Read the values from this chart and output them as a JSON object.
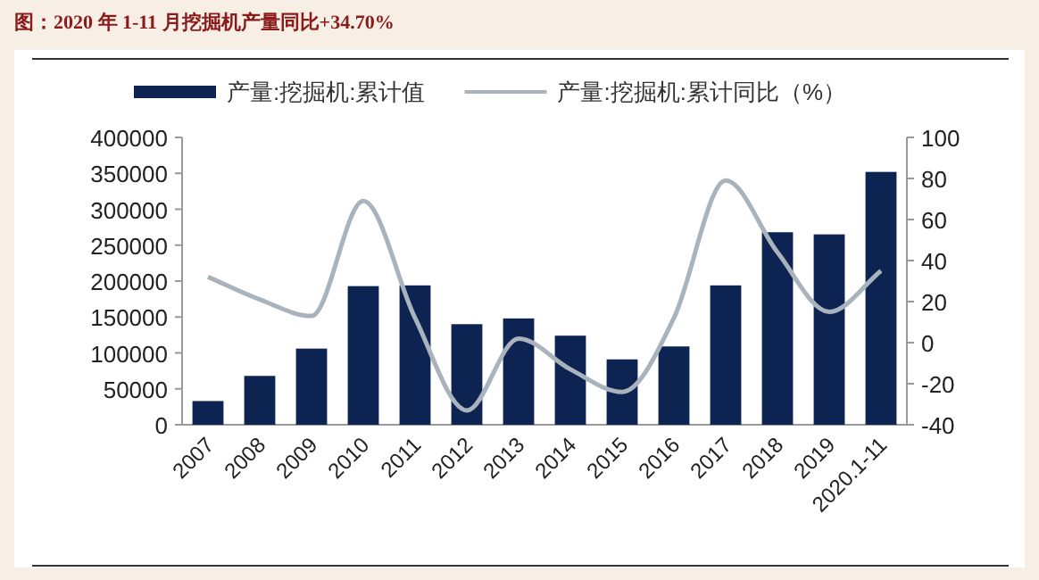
{
  "chart_data": {
    "type": "bar",
    "title": "图：2020 年 1-11 月挖掘机产量同比+34.70%",
    "categories": [
      "2007",
      "2008",
      "2009",
      "2010",
      "2011",
      "2012",
      "2013",
      "2014",
      "2015",
      "2016",
      "2017",
      "2018",
      "2019",
      "2020.1-11"
    ],
    "series": [
      {
        "name": "产量:挖掘机:累计值",
        "color": "#0d2452",
        "values": [
          33000,
          68000,
          106000,
          193000,
          194000,
          140000,
          148000,
          124000,
          91000,
          109000,
          194000,
          268000,
          265000,
          352000
        ]
      },
      {
        "name": "产量:挖掘机:累计同比（%）",
        "color": "#a9b3bd",
        "type": "line",
        "axis": "y2",
        "values": [
          32,
          21,
          13,
          69,
          12,
          -33,
          2,
          -13,
          -24,
          12,
          79,
          44,
          15,
          35
        ]
      }
    ],
    "ylim": [
      0,
      400000
    ],
    "yticks": [
      0,
      50000,
      100000,
      150000,
      200000,
      250000,
      300000,
      350000,
      400000
    ],
    "y2lim": [
      -40,
      100
    ],
    "y2ticks": [
      -40,
      -20,
      0,
      20,
      40,
      60,
      80,
      100
    ],
    "legend": "top",
    "marker": "none",
    "line_style": "solid"
  }
}
